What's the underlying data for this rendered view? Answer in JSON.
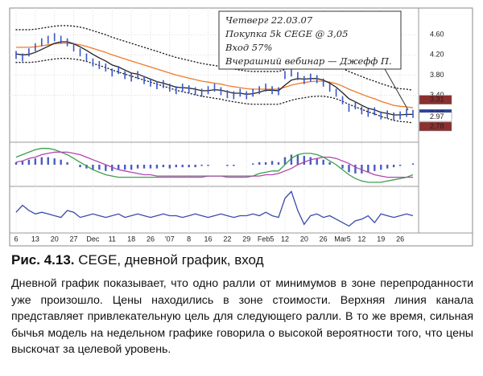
{
  "chart_data": [
    {
      "type": "line",
      "categories": [
        "6",
        null,
        null,
        "13",
        null,
        null,
        "20",
        null,
        null,
        "27",
        null,
        null,
        "Dec",
        null,
        null,
        "11",
        null,
        null,
        "18",
        null,
        null,
        "26",
        null,
        null,
        "'07",
        null,
        null,
        "8",
        null,
        null,
        "16",
        null,
        null,
        "22",
        null,
        null,
        "29",
        null,
        null,
        "Feb5",
        null,
        null,
        "12",
        null,
        null,
        "20",
        null,
        null,
        "26",
        null,
        null,
        "Mar5",
        null,
        null,
        "12",
        null,
        null,
        "19",
        null,
        null,
        "26",
        null,
        null
      ],
      "ylim": [
        2.5,
        5.05
      ],
      "yticks": [
        {
          "value": 3.4,
          "label": "3.40"
        },
        {
          "value": 3.8,
          "label": "3.80"
        },
        {
          "value": 4.2,
          "label": "4.20"
        },
        {
          "value": 4.6,
          "label": "4.60"
        }
      ],
      "markers": [
        3.31,
        3.03,
        2.97,
        2.78
      ],
      "marker_colors": [
        "#8b2f2f",
        "#2b3f9e",
        "#ffffff",
        "#8b2f2f"
      ],
      "annotation": [
        "Четверг 22.03.07",
        "Покупка 5k CEGE @ 3,05",
        "Вход 57%",
        "Вчерашний вебинар — Джефф П."
      ],
      "series": [
        {
          "kind": "dotted",
          "color": "#222222",
          "values": [
            4.7,
            4.7,
            4.7,
            4.71,
            4.73,
            4.75,
            4.77,
            4.78,
            4.78,
            4.77,
            4.75,
            4.72,
            4.68,
            4.64,
            4.6,
            4.55,
            4.51,
            4.47,
            4.43,
            4.39,
            4.35,
            4.31,
            4.27,
            4.23,
            4.19,
            4.15,
            4.12,
            4.09,
            4.06,
            4.03,
            4.01,
            3.99,
            3.97,
            3.94,
            3.92,
            3.9,
            3.88,
            3.87,
            3.87,
            3.87,
            3.87,
            3.87,
            3.91,
            3.95,
            3.98,
            4.0,
            4.02,
            4.03,
            4.03,
            4.01,
            3.98,
            3.93,
            3.87,
            3.82,
            3.77,
            3.72,
            3.68,
            3.63,
            3.59,
            3.55,
            3.53,
            3.52,
            3.5
          ]
        },
        {
          "kind": "dotted",
          "color": "#222222",
          "values": [
            4.05,
            4.05,
            4.05,
            4.06,
            4.08,
            4.1,
            4.12,
            4.13,
            4.13,
            4.12,
            4.1,
            4.07,
            4.03,
            3.99,
            3.95,
            3.9,
            3.86,
            3.82,
            3.78,
            3.74,
            3.7,
            3.66,
            3.62,
            3.58,
            3.54,
            3.5,
            3.47,
            3.44,
            3.41,
            3.38,
            3.36,
            3.34,
            3.32,
            3.29,
            3.27,
            3.25,
            3.23,
            3.22,
            3.22,
            3.22,
            3.22,
            3.22,
            3.26,
            3.3,
            3.33,
            3.35,
            3.37,
            3.38,
            3.38,
            3.36,
            3.33,
            3.28,
            3.22,
            3.17,
            3.12,
            3.07,
            3.03,
            2.98,
            2.94,
            2.9,
            2.88,
            2.87,
            2.85
          ]
        },
        {
          "kind": "line",
          "color": "#f07a2a",
          "values": [
            4.35,
            4.35,
            4.35,
            4.36,
            4.38,
            4.4,
            4.42,
            4.43,
            4.43,
            4.42,
            4.4,
            4.37,
            4.33,
            4.29,
            4.25,
            4.2,
            4.16,
            4.12,
            4.08,
            4.04,
            4.0,
            3.96,
            3.92,
            3.88,
            3.84,
            3.8,
            3.77,
            3.74,
            3.71,
            3.68,
            3.66,
            3.64,
            3.62,
            3.59,
            3.57,
            3.55,
            3.53,
            3.52,
            3.52,
            3.52,
            3.52,
            3.52,
            3.56,
            3.6,
            3.63,
            3.65,
            3.67,
            3.68,
            3.68,
            3.66,
            3.63,
            3.58,
            3.52,
            3.47,
            3.42,
            3.37,
            3.33,
            3.28,
            3.24,
            3.2,
            3.18,
            3.17,
            3.15
          ]
        },
        {
          "kind": "line",
          "color": "#222222",
          "values": [
            4.22,
            4.2,
            4.21,
            4.25,
            4.31,
            4.37,
            4.43,
            4.46,
            4.46,
            4.42,
            4.36,
            4.29,
            4.21,
            4.14,
            4.08,
            4.0,
            3.96,
            3.9,
            3.84,
            3.82,
            3.77,
            3.72,
            3.67,
            3.64,
            3.6,
            3.56,
            3.55,
            3.54,
            3.52,
            3.49,
            3.49,
            3.51,
            3.5,
            3.47,
            3.44,
            3.44,
            3.42,
            3.43,
            3.46,
            3.5,
            3.5,
            3.49,
            3.6,
            3.7,
            3.73,
            3.72,
            3.73,
            3.73,
            3.7,
            3.64,
            3.56,
            3.45,
            3.33,
            3.27,
            3.2,
            3.14,
            3.11,
            3.06,
            3.04,
            3.01,
            3.01,
            3.02,
            3.02
          ]
        },
        {
          "kind": "ticks",
          "color": "#3a55c8",
          "values": [
            4.2,
            4.15,
            4.25,
            4.35,
            4.45,
            4.5,
            4.55,
            4.5,
            4.45,
            4.35,
            4.25,
            4.15,
            4.05,
            4.0,
            3.95,
            3.85,
            3.9,
            3.8,
            3.75,
            3.8,
            3.7,
            3.65,
            3.6,
            3.62,
            3.55,
            3.5,
            3.55,
            3.52,
            3.48,
            3.45,
            3.5,
            3.55,
            3.48,
            3.42,
            3.4,
            3.45,
            3.4,
            3.45,
            3.5,
            3.55,
            3.5,
            3.48,
            3.8,
            3.85,
            3.78,
            3.7,
            3.75,
            3.72,
            3.65,
            3.55,
            3.45,
            3.3,
            3.15,
            3.2,
            3.1,
            3.05,
            3.08,
            3.0,
            3.02,
            2.98,
            3.0,
            3.05,
            3.03
          ]
        }
      ]
    },
    {
      "type": "line",
      "ylim": [
        -1.6,
        1.6
      ],
      "series": [
        {
          "kind": "bar",
          "color": "#4a5cc0",
          "values": [
            0.2,
            0.3,
            0.4,
            0.5,
            0.6,
            0.6,
            0.5,
            0.4,
            0.2,
            0,
            -0.2,
            -0.3,
            -0.4,
            -0.4,
            -0.5,
            -0.5,
            -0.4,
            -0.4,
            -0.4,
            -0.3,
            -0.3,
            -0.3,
            -0.3,
            -0.2,
            -0.3,
            -0.2,
            -0.2,
            -0.2,
            -0.2,
            -0.1,
            -0.1,
            0,
            0,
            -0.1,
            -0.1,
            0,
            0,
            0.1,
            0.2,
            0.2,
            0.3,
            0.2,
            0.6,
            0.8,
            0.8,
            0.7,
            0.6,
            0.5,
            0.4,
            0.2,
            0,
            -0.3,
            -0.6,
            -0.7,
            -0.7,
            -0.6,
            -0.5,
            -0.4,
            -0.3,
            -0.2,
            -0.1,
            0,
            0.1
          ]
        },
        {
          "kind": "line",
          "color": "#3aa04a",
          "values": [
            0.6,
            0.8,
            1.0,
            1.2,
            1.3,
            1.3,
            1.2,
            1.0,
            0.8,
            0.5,
            0.2,
            -0.1,
            -0.4,
            -0.6,
            -0.8,
            -0.9,
            -1.0,
            -1.0,
            -1.0,
            -1.0,
            -1.0,
            -1.0,
            -1.0,
            -1.0,
            -1.0,
            -1.0,
            -1.0,
            -1.0,
            -1.0,
            -1.0,
            -0.9,
            -0.9,
            -0.9,
            -1.0,
            -1.0,
            -1.0,
            -1.0,
            -0.9,
            -0.7,
            -0.6,
            -0.5,
            -0.5,
            0.0,
            0.5,
            0.8,
            0.9,
            0.9,
            0.8,
            0.6,
            0.3,
            0.0,
            -0.4,
            -0.8,
            -1.1,
            -1.3,
            -1.4,
            -1.4,
            -1.4,
            -1.3,
            -1.2,
            -1.1,
            -1.0,
            -0.8
          ]
        },
        {
          "kind": "line",
          "color": "#b044b0",
          "values": [
            0.2,
            0.3,
            0.5,
            0.6,
            0.8,
            0.9,
            1.0,
            1.0,
            1.0,
            0.9,
            0.8,
            0.6,
            0.4,
            0.2,
            0.0,
            -0.2,
            -0.4,
            -0.5,
            -0.6,
            -0.7,
            -0.8,
            -0.8,
            -0.9,
            -0.9,
            -0.9,
            -0.9,
            -0.9,
            -0.9,
            -0.9,
            -0.9,
            -0.9,
            -0.9,
            -0.9,
            -0.9,
            -0.9,
            -0.9,
            -0.9,
            -0.9,
            -0.9,
            -0.8,
            -0.8,
            -0.7,
            -0.5,
            -0.3,
            0.0,
            0.2,
            0.4,
            0.5,
            0.6,
            0.6,
            0.5,
            0.3,
            0.1,
            -0.2,
            -0.4,
            -0.6,
            -0.8,
            -0.9,
            -1.0,
            -1.0,
            -1.0,
            -1.0,
            -1.0
          ]
        }
      ]
    },
    {
      "type": "line",
      "ylim": [
        -1,
        1.6
      ],
      "series": [
        {
          "kind": "line",
          "color": "#3a4aa8",
          "values": [
            0.2,
            0.6,
            0.3,
            0.1,
            0.2,
            0.1,
            0,
            -0.1,
            0.3,
            0.2,
            -0.1,
            0,
            0.1,
            0,
            -0.1,
            0,
            0.1,
            -0.1,
            0,
            0.1,
            0,
            -0.1,
            0,
            0.1,
            0,
            0,
            -0.1,
            0,
            0.1,
            0,
            -0.1,
            0,
            0.1,
            0,
            -0.1,
            0,
            0,
            0.1,
            0,
            0.2,
            0,
            -0.1,
            1.0,
            1.4,
            0.3,
            -0.5,
            0,
            0.1,
            -0.1,
            0,
            -0.2,
            -0.4,
            -0.6,
            -0.3,
            -0.2,
            0,
            -0.4,
            0.1,
            0,
            -0.1,
            0,
            0.1,
            0
          ]
        }
      ]
    }
  ],
  "figure": {
    "label": "Рис. 4.13.",
    "caption": "CEGE, дневной график, вход"
  },
  "body": "Дневной график показывает, что одно ралли от минимумов в зоне перепроданности уже произошло. Цены находились в зоне стоимости. Верхняя линия канала представляет привлекательную цель для следующего ралли. В то же время, сильная бычья модель на недельном графике говорила о высокой вероятности того, что цены выскочат за целевой уровень."
}
